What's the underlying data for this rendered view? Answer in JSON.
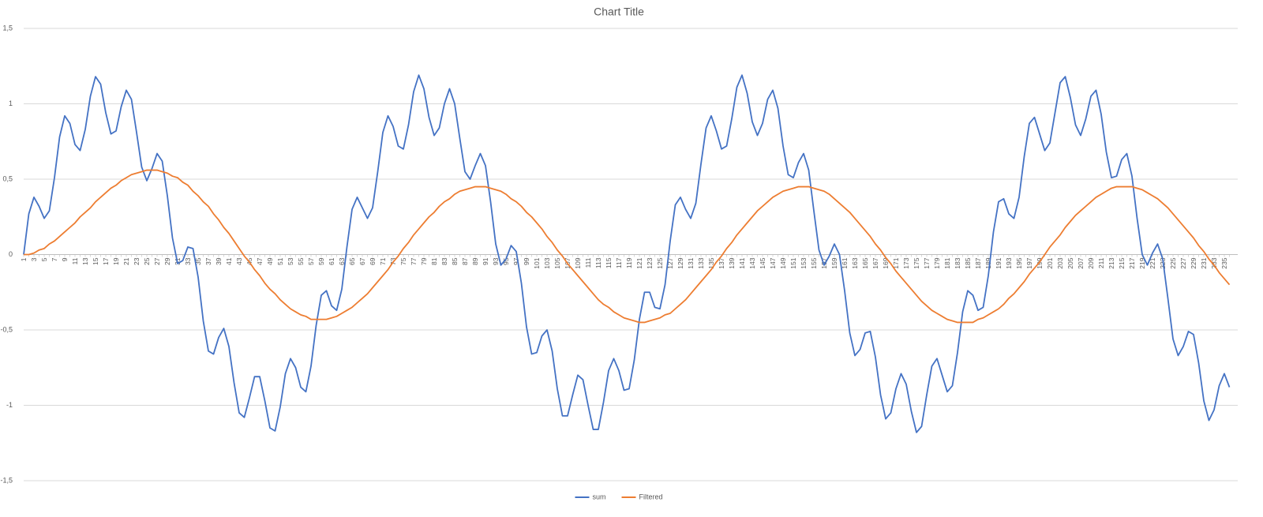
{
  "chart_data": {
    "type": "line",
    "title": "Chart Title",
    "categories": [
      1,
      null,
      3,
      null,
      5,
      null,
      7,
      null,
      9,
      null,
      11,
      null,
      13,
      null,
      15,
      null,
      17,
      null,
      19,
      null,
      21,
      null,
      23,
      null,
      25,
      null,
      27,
      null,
      29,
      null,
      31,
      null,
      33,
      null,
      35,
      null,
      37,
      null,
      39,
      null,
      41,
      null,
      43,
      null,
      45,
      null,
      47,
      null,
      49,
      null,
      51,
      null,
      53,
      null,
      55,
      null,
      57,
      null,
      59,
      null,
      61,
      null,
      63,
      null,
      65,
      null,
      67,
      null,
      69,
      null,
      71,
      null,
      73,
      null,
      75,
      null,
      77,
      null,
      79,
      null,
      81,
      null,
      83,
      null,
      85,
      null,
      87,
      null,
      89,
      null,
      91,
      null,
      93,
      null,
      95,
      null,
      97,
      null,
      99,
      null,
      101,
      null,
      103,
      null,
      105,
      null,
      107,
      null,
      109,
      null,
      111,
      null,
      113,
      null,
      115,
      null,
      117,
      null,
      119,
      null,
      121,
      null,
      123,
      null,
      125,
      null,
      127,
      null,
      129,
      null,
      131,
      null,
      133,
      null,
      135,
      null,
      137,
      null,
      139,
      null,
      141,
      null,
      143,
      null,
      145,
      null,
      147,
      null,
      149,
      null,
      151,
      null,
      153,
      null,
      155,
      null,
      157,
      null,
      159,
      null,
      161,
      null,
      163,
      null,
      165,
      null,
      167,
      null,
      169,
      null,
      171,
      null,
      173,
      null,
      175,
      null,
      177,
      null,
      179,
      null,
      181,
      null,
      183,
      null,
      185,
      null,
      187,
      null,
      189,
      null,
      191,
      null,
      193,
      null,
      195,
      null,
      197,
      null,
      199,
      null,
      201,
      null,
      203,
      null,
      205,
      null,
      207,
      null,
      209,
      null,
      211,
      null,
      213,
      null,
      215,
      null,
      217,
      null,
      219,
      null,
      221,
      null,
      223,
      null,
      225,
      null,
      227,
      null,
      229,
      null,
      231,
      null,
      233,
      null,
      235,
      null
    ],
    "series": [
      {
        "name": "sum",
        "color": "#4472c4",
        "values": [
          0,
          0.27,
          0.38,
          0.32,
          0.24,
          0.29,
          0.51,
          0.78,
          0.92,
          0.87,
          0.73,
          0.69,
          0.83,
          1.05,
          1.18,
          1.13,
          0.94,
          0.8,
          0.82,
          0.98,
          1.09,
          1.03,
          0.81,
          0.58,
          0.49,
          0.57,
          0.67,
          0.62,
          0.39,
          0.11,
          -0.06,
          -0.04,
          0.05,
          0.04,
          -0.15,
          -0.44,
          -0.64,
          -0.66,
          -0.55,
          -0.49,
          -0.61,
          -0.85,
          -1.05,
          -1.08,
          -0.95,
          -0.81,
          -0.81,
          -0.97,
          -1.15,
          -1.17,
          -1.01,
          -0.79,
          -0.69,
          -0.75,
          -0.88,
          -0.91,
          -0.74,
          -0.47,
          -0.27,
          -0.24,
          -0.34,
          -0.37,
          -0.23,
          0.05,
          0.3,
          0.38,
          0.31,
          0.24,
          0.31,
          0.55,
          0.81,
          0.92,
          0.85,
          0.72,
          0.7,
          0.86,
          1.08,
          1.19,
          1.1,
          0.91,
          0.79,
          0.84,
          1.0,
          1.1,
          1.0,
          0.77,
          0.55,
          0.5,
          0.59,
          0.67,
          0.59,
          0.35,
          0.07,
          -0.07,
          -0.03,
          0.06,
          0.02,
          -0.19,
          -0.48,
          -0.66,
          -0.65,
          -0.54,
          -0.5,
          -0.64,
          -0.89,
          -1.07,
          -1.07,
          -0.93,
          -0.8,
          -0.83,
          -1.0,
          -1.16,
          -1.16,
          -0.98,
          -0.77,
          -0.69,
          -0.77,
          -0.9,
          -0.89,
          -0.7,
          -0.43,
          -0.25,
          -0.25,
          -0.35,
          -0.36,
          -0.2,
          0.09,
          0.33,
          0.38,
          0.3,
          0.24,
          0.34,
          0.6,
          0.84,
          0.92,
          0.82,
          0.7,
          0.72,
          0.9,
          1.11,
          1.19,
          1.07,
          0.88,
          0.79,
          0.87,
          1.03,
          1.09,
          0.97,
          0.72,
          0.53,
          0.51,
          0.61,
          0.67,
          0.56,
          0.29,
          0.03,
          -0.07,
          -0.01,
          0.07,
          0.0,
          -0.24,
          -0.52,
          -0.67,
          -0.63,
          -0.52,
          -0.51,
          -0.68,
          -0.93,
          -1.09,
          -1.05,
          -0.89,
          -0.79,
          -0.86,
          -1.04,
          -1.18,
          -1.14,
          -0.93,
          -0.74,
          -0.69,
          -0.8,
          -0.91,
          -0.87,
          -0.65,
          -0.38,
          -0.24,
          -0.27,
          -0.37,
          -0.35,
          -0.14,
          0.15,
          0.35,
          0.37,
          0.27,
          0.24,
          0.38,
          0.65,
          0.87,
          0.91,
          0.8,
          0.69,
          0.74,
          0.94,
          1.14,
          1.18,
          1.04,
          0.86,
          0.79,
          0.9,
          1.05,
          1.09,
          0.93,
          0.68,
          0.51,
          0.52,
          0.63,
          0.67,
          0.52,
          0.24,
          0.0,
          -0.07,
          0.01,
          0.07,
          -0.03,
          -0.29,
          -0.56,
          -0.67,
          -0.61,
          -0.51,
          -0.53,
          -0.72,
          -0.97,
          -1.1,
          -1.03,
          -0.87,
          -0.79,
          -0.88
        ]
      },
      {
        "name": "Filtered",
        "color": "#ed7d31",
        "values": [
          0,
          0.0,
          0.01,
          0.03,
          0.04,
          0.07,
          0.09,
          0.12,
          0.15,
          0.18,
          0.21,
          0.25,
          0.28,
          0.31,
          0.35,
          0.38,
          0.41,
          0.44,
          0.46,
          0.49,
          0.51,
          0.53,
          0.54,
          0.55,
          0.56,
          0.56,
          0.56,
          0.55,
          0.54,
          0.52,
          0.51,
          0.48,
          0.46,
          0.42,
          0.39,
          0.35,
          0.32,
          0.27,
          0.23,
          0.18,
          0.14,
          0.09,
          0.04,
          -0.01,
          -0.05,
          -0.1,
          -0.14,
          -0.19,
          -0.23,
          -0.26,
          -0.3,
          -0.33,
          -0.36,
          -0.38,
          -0.4,
          -0.41,
          -0.43,
          -0.43,
          -0.43,
          -0.43,
          -0.42,
          -0.41,
          -0.39,
          -0.37,
          -0.35,
          -0.32,
          -0.29,
          -0.26,
          -0.22,
          -0.18,
          -0.14,
          -0.1,
          -0.05,
          -0.01,
          0.04,
          0.08,
          0.13,
          0.17,
          0.21,
          0.25,
          0.28,
          0.32,
          0.35,
          0.37,
          0.4,
          0.42,
          0.43,
          0.44,
          0.45,
          0.45,
          0.45,
          0.44,
          0.43,
          0.42,
          0.4,
          0.37,
          0.35,
          0.32,
          0.28,
          0.25,
          0.21,
          0.17,
          0.12,
          0.08,
          0.03,
          -0.01,
          -0.06,
          -0.1,
          -0.14,
          -0.18,
          -0.22,
          -0.26,
          -0.3,
          -0.33,
          -0.35,
          -0.38,
          -0.4,
          -0.42,
          -0.43,
          -0.44,
          -0.45,
          -0.45,
          -0.44,
          -0.43,
          -0.42,
          -0.4,
          -0.39,
          -0.36,
          -0.33,
          -0.3,
          -0.26,
          -0.22,
          -0.18,
          -0.14,
          -0.1,
          -0.05,
          -0.01,
          0.04,
          0.08,
          0.13,
          0.17,
          0.21,
          0.25,
          0.29,
          0.32,
          0.35,
          0.38,
          0.4,
          0.42,
          0.43,
          0.44,
          0.45,
          0.45,
          0.45,
          0.44,
          0.43,
          0.42,
          0.4,
          0.37,
          0.34,
          0.31,
          0.28,
          0.24,
          0.2,
          0.16,
          0.12,
          0.07,
          0.03,
          -0.02,
          -0.06,
          -0.11,
          -0.15,
          -0.19,
          -0.23,
          -0.27,
          -0.31,
          -0.34,
          -0.37,
          -0.39,
          -0.41,
          -0.43,
          -0.44,
          -0.45,
          -0.45,
          -0.45,
          -0.45,
          -0.43,
          -0.42,
          -0.4,
          -0.38,
          -0.36,
          -0.33,
          -0.29,
          -0.26,
          -0.22,
          -0.18,
          -0.13,
          -0.09,
          -0.05,
          0.0,
          0.05,
          0.09,
          0.13,
          0.18,
          0.22,
          0.26,
          0.29,
          0.32,
          0.35,
          0.38,
          0.4,
          0.42,
          0.44,
          0.45,
          0.45,
          0.45,
          0.45,
          0.44,
          0.43,
          0.41,
          0.39,
          0.37,
          0.34,
          0.31,
          0.27,
          0.23,
          0.19,
          0.15,
          0.11,
          0.06,
          0.02,
          -0.03,
          -0.07,
          -0.12,
          -0.16,
          -0.2
        ]
      }
    ],
    "ylim": [
      -1.5,
      1.5
    ],
    "yticks": [
      {
        "value": -1.5,
        "label": "-1,5"
      },
      -1,
      {
        "value": -0.5,
        "label": "-0,5"
      },
      0,
      {
        "value": 0.5,
        "label": "0,5"
      },
      1,
      {
        "value": 1.5,
        "label": "1,5"
      }
    ],
    "grid": true,
    "legend": "bottom"
  }
}
